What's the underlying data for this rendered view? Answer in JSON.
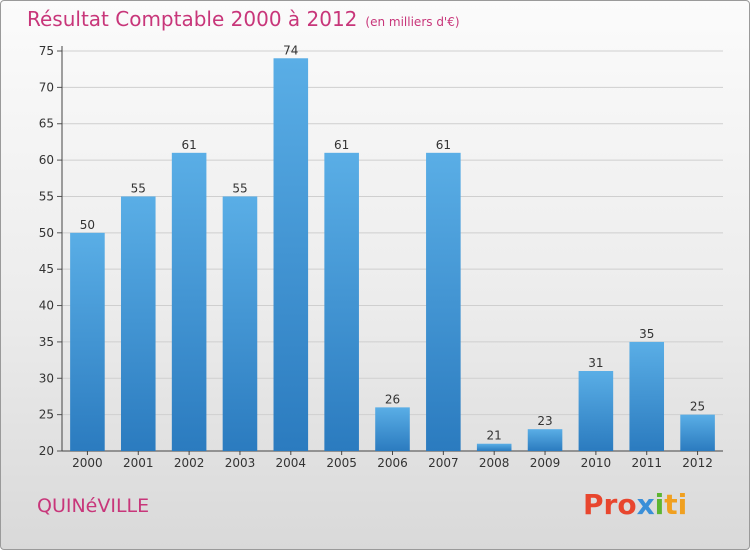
{
  "title": {
    "main": "Résultat Comptable 2000 à 2012",
    "sub": "(en milliers d'€)"
  },
  "commune": "QUINéVILLE",
  "logo": {
    "text": "Proxiti",
    "parts": [
      "Pro",
      "x",
      "i",
      "ti"
    ],
    "colors": [
      "#e8462e",
      "#3a8fd8",
      "#5db531",
      "#f0a020"
    ]
  },
  "colors": {
    "bar_top": "#5aaee6",
    "bar_bottom": "#2b7bbf",
    "title": "#c8367a",
    "grid": "#cfcfcf"
  },
  "chart_data": {
    "type": "bar",
    "title": "Résultat Comptable 2000 à 2012 (en milliers d'€)",
    "xlabel": "",
    "ylabel": "",
    "categories": [
      "2000",
      "2001",
      "2002",
      "2003",
      "2004",
      "2005",
      "2006",
      "2007",
      "2008",
      "2009",
      "2010",
      "2011",
      "2012"
    ],
    "values": [
      50,
      55,
      61,
      55,
      74,
      61,
      26,
      61,
      21,
      23,
      31,
      35,
      25
    ],
    "ylim": [
      20,
      75
    ],
    "yticks": [
      20,
      25,
      30,
      35,
      40,
      45,
      50,
      55,
      60,
      65,
      70,
      75
    ],
    "grid": true
  }
}
